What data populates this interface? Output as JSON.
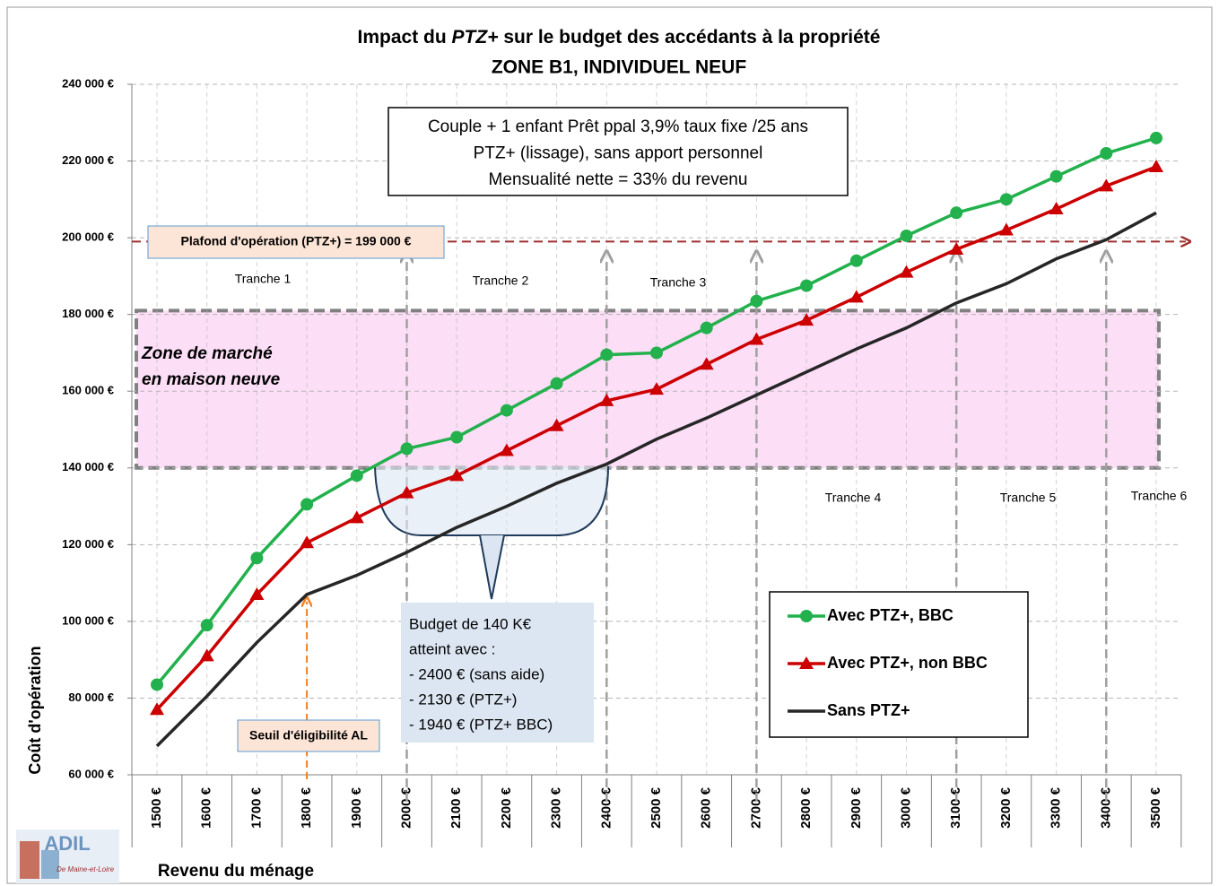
{
  "chart_data": {
    "type": "line",
    "title": [
      "Impact du ",
      "PTZ+",
      " sur le budget des accédants à la propriété"
    ],
    "subtitle": "ZONE B1, INDIVIDUEL NEUF",
    "x_label": "Revenu du  ménage",
    "y_label": "Coût d'opération",
    "categories": [
      "1500 €",
      "1600 €",
      "1700 €",
      "1800 €",
      "1900 €",
      "2000 €",
      "2100 €",
      "2200 €",
      "2300 €",
      "2400 €",
      "2500 €",
      "2600 €",
      "2700 €",
      "2800 €",
      "2900 €",
      "3000 €",
      "3100 €",
      "3200 €",
      "3300 €",
      "3400 €",
      "3500 €"
    ],
    "series": [
      {
        "name": "Avec PTZ+, BBC",
        "color": "#22b14c",
        "marker": "circle",
        "values": [
          83500,
          99000,
          116500,
          130500,
          138000,
          145000,
          148000,
          155000,
          162000,
          169500,
          170000,
          176500,
          183500,
          187500,
          194000,
          200500,
          206500,
          210000,
          216000,
          222000,
          226000
        ]
      },
      {
        "name": "Avec PTZ+, non BBC",
        "color": "#cc0000",
        "marker": "triangle",
        "values": [
          77000,
          91000,
          107000,
          120500,
          127000,
          133500,
          138000,
          144500,
          151000,
          157500,
          160500,
          167000,
          173500,
          178500,
          184500,
          191000,
          197000,
          202000,
          207500,
          213500,
          218500
        ]
      },
      {
        "name": "Sans PTZ+",
        "color": "#262626",
        "marker": "none",
        "values": [
          67500,
          80500,
          94500,
          107000,
          112000,
          118000,
          124500,
          130000,
          136000,
          141000,
          147500,
          153000,
          159000,
          165000,
          171000,
          176500,
          183000,
          188000,
          194500,
          199500,
          206500
        ]
      }
    ],
    "ylim": [
      60000,
      240000
    ],
    "yticks": [
      {
        "value": 60000,
        "label": "60 000 €"
      },
      {
        "value": 80000,
        "label": "80 000 €"
      },
      {
        "value": 100000,
        "label": "100 000 €"
      },
      {
        "value": 120000,
        "label": "120 000 €"
      },
      {
        "value": 140000,
        "label": "140 000 €"
      },
      {
        "value": 160000,
        "label": "160 000 €"
      },
      {
        "value": 180000,
        "label": "180 000 €"
      },
      {
        "value": 200000,
        "label": "200 000 €"
      },
      {
        "value": 220000,
        "label": "220 000 €"
      },
      {
        "value": 240000,
        "label": "240 000 €"
      }
    ],
    "grid": true,
    "legend": "lower right",
    "info_box": [
      "Couple + 1 enfant Prêt ppal 3,9% taux fixe /25 ans",
      "PTZ+ (lissage), sans apport personnel",
      "Mensualité nette = 33% du revenu"
    ],
    "plafond": {
      "value": 199000,
      "label": "Plafond d'opération (PTZ+) = 199 000 €"
    },
    "zone": {
      "range": [
        140000,
        181000
      ],
      "label": [
        "Zone de marché",
        "en maison neuve"
      ]
    },
    "tranches": [
      "Tranche 1",
      "Tranche 2",
      "Tranche 3",
      "Tranche 4",
      "Tranche 5",
      "Tranche 6"
    ],
    "budget_note": [
      "Budget de 140 K€",
      "atteint avec :",
      "- 2400 € (sans aide)",
      "- 2130 € (PTZ+)",
      "- 1940 € (PTZ+ BBC)"
    ],
    "seuil": "Seuil d'éligibilité AL",
    "logo": [
      "ADIL",
      "De Maine-et-Loire"
    ]
  }
}
